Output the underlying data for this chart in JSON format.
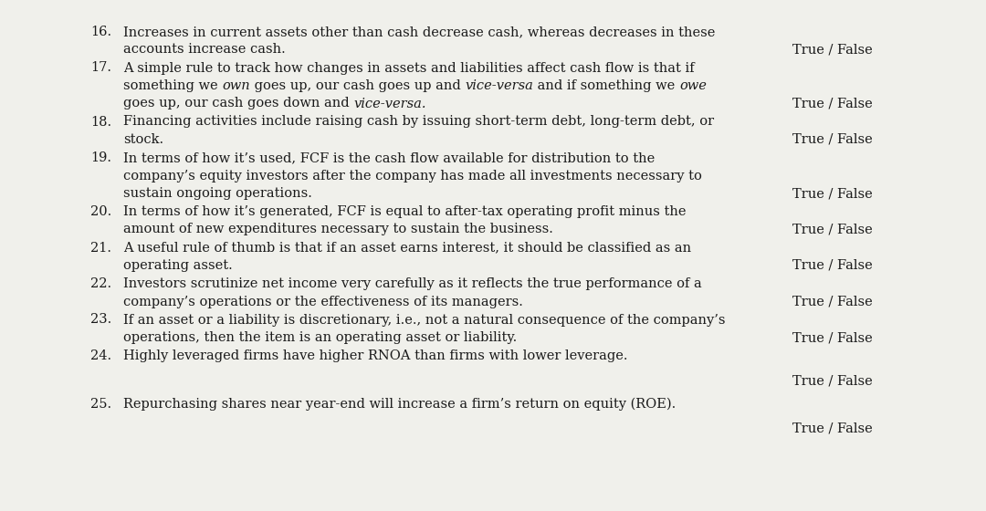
{
  "bg_color": "#f0f0eb",
  "text_color": "#1a1a1a",
  "font_size": 10.5,
  "true_false_label": "True / False",
  "items": [
    {
      "num": "16.",
      "lines": [
        {
          "text": "Increases in current assets other than cash decrease cash, whereas decreases in these",
          "segments": [
            {
              "t": "Increases in current assets other than cash decrease cash, whereas decreases in these",
              "i": false
            }
          ]
        },
        {
          "text": "accounts increase cash.",
          "segments": [
            {
              "t": "accounts increase cash.",
              "i": false
            }
          ]
        }
      ],
      "tf_line_idx": 1,
      "tf_separate": false
    },
    {
      "num": "17.",
      "lines": [
        {
          "text": "A simple rule to track how changes in assets and liabilities affect cash flow is that if",
          "segments": [
            {
              "t": "A simple rule to track how changes in assets and liabilities affect cash flow is that if",
              "i": false
            }
          ]
        },
        {
          "text": "something we own goes up, our cash goes up and vice-versa and if something we owe",
          "segments": [
            {
              "t": "something we ",
              "i": false
            },
            {
              "t": "own",
              "i": true
            },
            {
              "t": " goes up, our cash goes up and ",
              "i": false
            },
            {
              "t": "vice-versa",
              "i": true
            },
            {
              "t": " and if something we ",
              "i": false
            },
            {
              "t": "owe",
              "i": true
            }
          ]
        },
        {
          "text": "goes up, our cash goes down and vice-versa.",
          "segments": [
            {
              "t": "goes up, our cash goes down and ",
              "i": false
            },
            {
              "t": "vice-versa.",
              "i": true
            }
          ]
        }
      ],
      "tf_line_idx": 2,
      "tf_separate": false
    },
    {
      "num": "18.",
      "lines": [
        {
          "text": "Financing activities include raising cash by issuing short-term debt, long-term debt, or",
          "segments": [
            {
              "t": "Financing activities include raising cash by issuing short-term debt, long-term debt, or",
              "i": false
            }
          ]
        },
        {
          "text": "stock.",
          "segments": [
            {
              "t": "stock.",
              "i": false
            }
          ]
        }
      ],
      "tf_line_idx": 1,
      "tf_separate": false
    },
    {
      "num": "19.",
      "lines": [
        {
          "text": "In terms of how it’s used, FCF is the cash flow available for distribution to the",
          "segments": [
            {
              "t": "In terms of how it’s used, FCF is the cash flow available for distribution to the",
              "i": false
            }
          ]
        },
        {
          "text": "company’s equity investors after the company has made all investments necessary to",
          "segments": [
            {
              "t": "company’s equity investors after the company has made all investments necessary to",
              "i": false
            }
          ]
        },
        {
          "text": "sustain ongoing operations.",
          "segments": [
            {
              "t": "sustain ongoing operations.",
              "i": false
            }
          ]
        }
      ],
      "tf_line_idx": 2,
      "tf_separate": false
    },
    {
      "num": "20.",
      "lines": [
        {
          "text": "In terms of how it’s generated, FCF is equal to after-tax operating profit minus the",
          "segments": [
            {
              "t": "In terms of how it’s generated, FCF is equal to after-tax operating profit minus the",
              "i": false
            }
          ]
        },
        {
          "text": "amount of new expenditures necessary to sustain the business.",
          "segments": [
            {
              "t": "amount of new expenditures necessary to sustain the business.",
              "i": false
            }
          ]
        }
      ],
      "tf_line_idx": 1,
      "tf_separate": false
    },
    {
      "num": "21.",
      "lines": [
        {
          "text": "A useful rule of thumb is that if an asset earns interest, it should be classified as an",
          "segments": [
            {
              "t": "A useful rule of thumb is that if an asset earns interest, it should be classified as an",
              "i": false
            }
          ]
        },
        {
          "text": "operating asset.",
          "segments": [
            {
              "t": "operating asset.",
              "i": false
            }
          ]
        }
      ],
      "tf_line_idx": 1,
      "tf_separate": false
    },
    {
      "num": "22.",
      "lines": [
        {
          "text": "Investors scrutinize net income very carefully as it reflects the true performance of a",
          "segments": [
            {
              "t": "Investors scrutinize net income very carefully as it reflects the true performance of a",
              "i": false
            }
          ]
        },
        {
          "text": "company’s operations or the effectiveness of its managers.",
          "segments": [
            {
              "t": "company’s operations or the effectiveness of its managers.",
              "i": false
            }
          ]
        }
      ],
      "tf_line_idx": 1,
      "tf_separate": false
    },
    {
      "num": "23.",
      "lines": [
        {
          "text": "If an asset or a liability is discretionary, i.e., not a natural consequence of the company’s",
          "segments": [
            {
              "t": "If an asset or a liability is discretionary, i.e., not a natural consequence of the company’s",
              "i": false
            }
          ]
        },
        {
          "text": "operations, then the item is an operating asset or liability.",
          "segments": [
            {
              "t": "operations, then the item is an operating asset or liability.",
              "i": false
            }
          ]
        }
      ],
      "tf_line_idx": 1,
      "tf_separate": false
    },
    {
      "num": "24.",
      "lines": [
        {
          "text": "Highly leveraged firms have higher RNOA than firms with lower leverage.",
          "segments": [
            {
              "t": "Highly leveraged firms have higher RNOA than firms with lower leverage.",
              "i": false
            }
          ]
        }
      ],
      "tf_line_idx": -1,
      "tf_separate": true
    },
    {
      "num": "25.",
      "lines": [
        {
          "text": "Repurchasing shares near year-end will increase a firm’s return on equity (ROE).",
          "segments": [
            {
              "t": "Repurchasing shares near year-end will increase a firm’s return on equity (ROE).",
              "i": false
            }
          ]
        }
      ],
      "tf_line_idx": -1,
      "tf_separate": true
    }
  ]
}
